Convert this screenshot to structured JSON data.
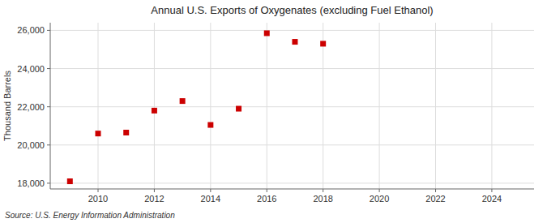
{
  "chart_data": {
    "type": "scatter",
    "title": "Annual U.S. Exports of Oxygenates (excluding Fuel Ethanol)",
    "ylabel": "Thousand Barrels",
    "source": "Source: U.S. Energy Information Administration",
    "x": [
      2009,
      2010,
      2011,
      2012,
      2013,
      2014,
      2015,
      2016,
      2017,
      2018
    ],
    "values": [
      18100,
      20600,
      20650,
      21800,
      22300,
      21050,
      21900,
      25850,
      25400,
      25300
    ],
    "color": "#cc0000",
    "marker": "square",
    "xlim": [
      2008.3,
      2025.5
    ],
    "ylim": [
      17700,
      26400
    ],
    "xticks": [
      2010,
      2012,
      2014,
      2016,
      2018,
      2020,
      2022,
      2024
    ],
    "yticks": [
      {
        "value": 18000,
        "label": "18,000"
      },
      {
        "value": 20000,
        "label": "20,000"
      },
      {
        "value": 22000,
        "label": "22,000"
      },
      {
        "value": 24000,
        "label": "24,000"
      },
      {
        "value": 26000,
        "label": "26,000"
      }
    ],
    "grid": true
  }
}
